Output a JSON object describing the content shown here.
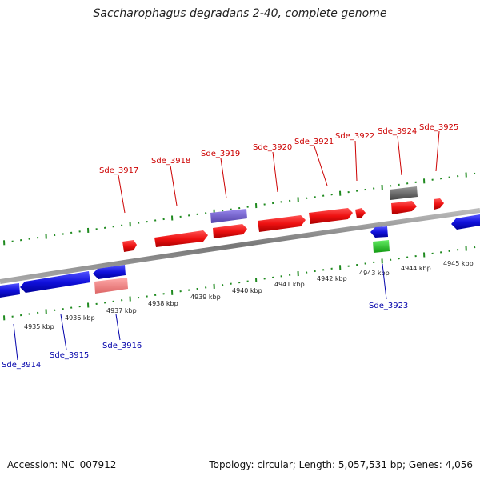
{
  "title": "Saccharophagus degradans 2-40, complete genome",
  "footer": {
    "accession": "Accession: NC_007912",
    "summary": "Topology: circular; Length: 5,057,531 bp; Genes: 4,056"
  },
  "colors": {
    "forward_label": "#cc0000",
    "reverse_label": "#0000aa",
    "tick": "#1f8a1f",
    "backbone": "#8a8a8a"
  },
  "kbp_ticks": [
    "4935 kbp",
    "4936 kbp",
    "4937 kbp",
    "4938 kbp",
    "4939 kbp",
    "4940 kbp",
    "4941 kbp",
    "4942 kbp",
    "4943 kbp",
    "4944 kbp",
    "4945 kbp"
  ],
  "genes": [
    {
      "name": "Sde_3917",
      "strand": "+",
      "color": "#ee1111"
    },
    {
      "name": "Sde_3918",
      "strand": "+",
      "color": "#ee1111"
    },
    {
      "name": "Sde_3919",
      "strand": "+",
      "color": "#ee1111"
    },
    {
      "name": "Sde_3920",
      "strand": "+",
      "color": "#ee1111"
    },
    {
      "name": "Sde_3921",
      "strand": "+",
      "color": "#ee1111"
    },
    {
      "name": "Sde_3922",
      "strand": "+",
      "color": "#ee1111"
    },
    {
      "name": "Sde_3924",
      "strand": "+",
      "color": "#ee1111"
    },
    {
      "name": "Sde_3925",
      "strand": "+",
      "color": "#ee1111"
    },
    {
      "name": "Sde_3914",
      "strand": "-",
      "color": "#1111dd"
    },
    {
      "name": "Sde_3915",
      "strand": "-",
      "color": "#1111dd"
    },
    {
      "name": "Sde_3916",
      "strand": "-",
      "color": "#1111dd"
    },
    {
      "name": "Sde_3923",
      "strand": "-",
      "color": "#1111dd"
    }
  ],
  "features": [
    {
      "kind": "rna",
      "color": "#7766cc"
    },
    {
      "kind": "pseudo",
      "color": "#666666"
    },
    {
      "kind": "rna",
      "color": "#ee8888"
    },
    {
      "kind": "misc",
      "color": "#22bb22"
    }
  ]
}
